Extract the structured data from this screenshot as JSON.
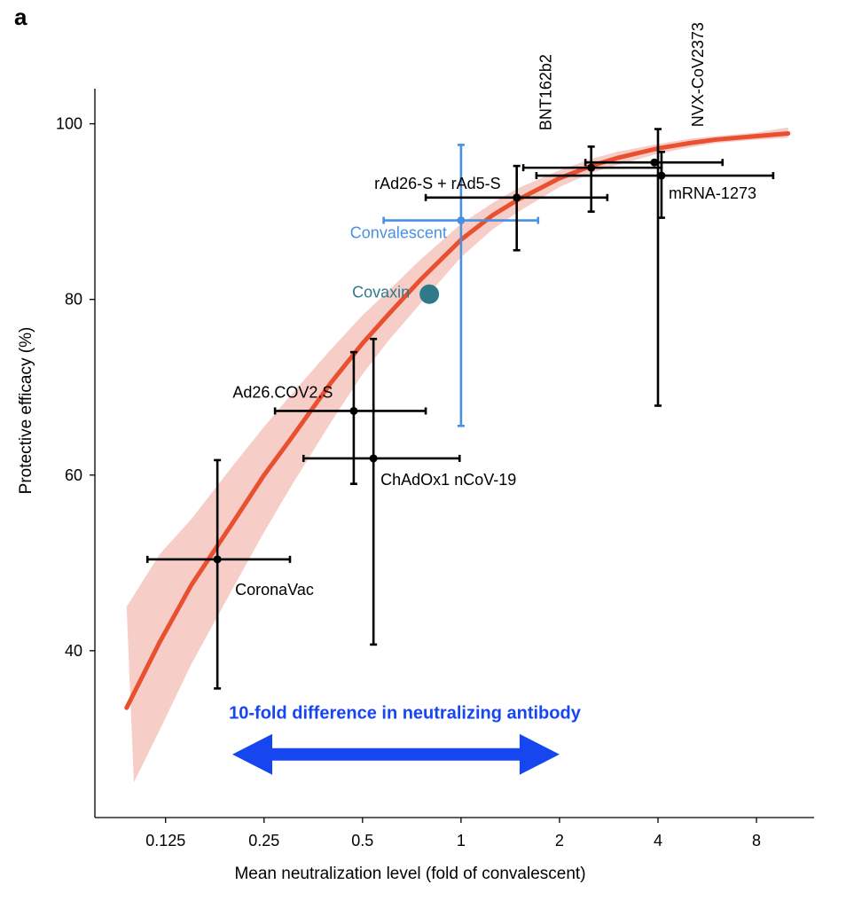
{
  "panel_label": "a",
  "chart_data": {
    "type": "scatter",
    "xlabel": "Mean neutralization level (fold of convalescent)",
    "ylabel": "Protective efficacy (%)",
    "x_scale": "log2",
    "xlim": [
      0.076,
      12
    ],
    "ylim": [
      21,
      104
    ],
    "x_ticks": [
      0.125,
      0.25,
      0.5,
      1,
      2,
      4,
      8
    ],
    "x_tick_labels": [
      "0.125",
      "0.25",
      "0.5",
      "1",
      "2",
      "4",
      "8"
    ],
    "y_ticks": [
      40,
      60,
      80,
      100
    ],
    "y_tick_labels": [
      "40",
      "60",
      "80",
      "100"
    ],
    "grid": false,
    "points": [
      {
        "name": "CoronaVac",
        "x": 0.18,
        "y": 50.4,
        "x_err": [
          0.11,
          0.3
        ],
        "y_err": [
          35.7,
          61.7
        ],
        "color": "#000000",
        "label_pos": "below-right"
      },
      {
        "name": "Ad26.COV2.S",
        "x": 0.47,
        "y": 67.3,
        "x_err": [
          0.27,
          0.78
        ],
        "y_err": [
          59.0,
          74.0
        ],
        "color": "#000000",
        "label_pos": "above-left"
      },
      {
        "name": "ChAdOx1 nCoV-19",
        "x": 0.54,
        "y": 61.9,
        "x_err": [
          0.33,
          0.99
        ],
        "y_err": [
          40.7,
          75.5
        ],
        "color": "#000000",
        "label_pos": "below-right"
      },
      {
        "name": "Convalescent",
        "x": 1.0,
        "y": 89.0,
        "x_err": [
          0.58,
          1.72
        ],
        "y_err": [
          65.6,
          97.6
        ],
        "color": "#4a90e2",
        "label_pos": "left"
      },
      {
        "name": "rAd26-S + rAd5-S",
        "x": 1.48,
        "y": 91.6,
        "x_err": [
          0.78,
          2.8
        ],
        "y_err": [
          85.6,
          95.2
        ],
        "color": "#000000",
        "label_pos": "above-left"
      },
      {
        "name": "BNT162b2",
        "x": 2.5,
        "y": 95.0,
        "x_err": [
          1.55,
          4.1
        ],
        "y_err": [
          90.0,
          97.4
        ],
        "color": "#000000",
        "label_pos": "above-rotated"
      },
      {
        "name": "NVX-CoV2373",
        "x": 3.9,
        "y": 95.6,
        "x_err": [
          2.4,
          6.3
        ],
        "y_err": [
          0,
          0
        ],
        "color": "#000000",
        "label_pos": "above-rotated"
      },
      {
        "name": "mRNA-1273",
        "x": 4.1,
        "y": 94.1,
        "x_err": [
          1.7,
          9.0
        ],
        "y_err": [
          89.3,
          96.8
        ],
        "color": "#000000",
        "label_pos": "below-right"
      },
      {
        "name": "Covaxin",
        "x": 0.8,
        "y": 80.6,
        "color": "#2f7a8a",
        "label_pos": "left",
        "marker": "large-circle"
      }
    ],
    "extra_error_bars": [
      {
        "x": 4.0,
        "x_err": [
          0,
          0
        ],
        "y_err": [
          67.9,
          99.4
        ]
      }
    ],
    "fit_curve": {
      "color": "#e8502f",
      "band_color": "#f4c4bd",
      "points": [
        [
          0.095,
          33.5
        ],
        [
          0.12,
          41.0
        ],
        [
          0.15,
          47.5
        ],
        [
          0.2,
          54.5
        ],
        [
          0.25,
          60.0
        ],
        [
          0.3,
          64.0
        ],
        [
          0.4,
          70.5
        ],
        [
          0.5,
          75.0
        ],
        [
          0.6,
          78.3
        ],
        [
          0.75,
          82.2
        ],
        [
          1.0,
          86.8
        ],
        [
          1.25,
          89.6
        ],
        [
          1.5,
          91.4
        ],
        [
          2.0,
          93.8
        ],
        [
          2.5,
          95.2
        ],
        [
          3.0,
          96.1
        ],
        [
          4.0,
          97.2
        ],
        [
          5.0,
          97.8
        ],
        [
          6.0,
          98.2
        ],
        [
          8.0,
          98.6
        ],
        [
          10.0,
          98.9
        ]
      ],
      "band_upper": [
        [
          0.095,
          45.0
        ],
        [
          0.12,
          51.0
        ],
        [
          0.15,
          55.0
        ],
        [
          0.2,
          61.0
        ],
        [
          0.25,
          65.5
        ],
        [
          0.3,
          69.0
        ],
        [
          0.4,
          74.3
        ],
        [
          0.5,
          78.2
        ],
        [
          0.6,
          81.0
        ],
        [
          0.75,
          84.5
        ],
        [
          1.0,
          88.6
        ],
        [
          1.25,
          91.0
        ],
        [
          1.5,
          92.7
        ],
        [
          2.0,
          94.7
        ],
        [
          2.5,
          96.0
        ],
        [
          3.0,
          96.8
        ],
        [
          4.0,
          97.7
        ],
        [
          5.0,
          98.3
        ],
        [
          6.0,
          98.6
        ],
        [
          8.0,
          99.0
        ],
        [
          10.0,
          99.6
        ]
      ],
      "band_lower": [
        [
          0.1,
          25.0
        ],
        [
          0.12,
          31.0
        ],
        [
          0.15,
          38.5
        ],
        [
          0.2,
          47.0
        ],
        [
          0.25,
          53.5
        ],
        [
          0.3,
          58.5
        ],
        [
          0.4,
          66.0
        ],
        [
          0.5,
          71.5
        ],
        [
          0.6,
          75.3
        ],
        [
          0.75,
          79.5
        ],
        [
          1.0,
          84.8
        ],
        [
          1.25,
          88.0
        ],
        [
          1.5,
          90.0
        ],
        [
          2.0,
          92.8
        ],
        [
          2.5,
          94.4
        ],
        [
          3.0,
          95.3
        ],
        [
          4.0,
          96.6
        ],
        [
          5.0,
          97.3
        ],
        [
          6.0,
          97.8
        ],
        [
          8.0,
          98.2
        ],
        [
          10.0,
          98.4
        ]
      ]
    },
    "annotation": {
      "text": "10-fold difference in neutralizing antibody",
      "color": "#1546f0",
      "arrow_from": 0.2,
      "arrow_to": 2.0,
      "y": 28.2
    }
  }
}
